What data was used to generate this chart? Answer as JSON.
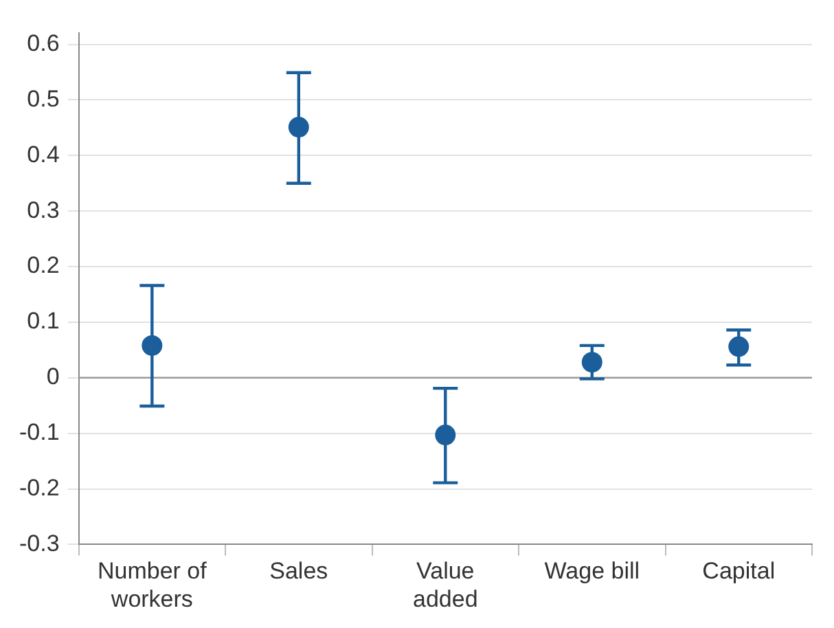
{
  "chart_data": {
    "type": "scatter",
    "categories": [
      "Number of workers",
      "Sales",
      "Value added",
      "Wage bill",
      "Capital"
    ],
    "series": [
      {
        "color": "#1b5e9b",
        "values": [
          0.058,
          0.451,
          -0.103,
          0.028,
          0.056
        ],
        "errors": [
          [
            -0.051,
            0.166
          ],
          [
            0.35,
            0.549
          ],
          [
            -0.189,
            -0.019
          ],
          [
            -0.002,
            0.058
          ],
          [
            0.023,
            0.086
          ]
        ]
      }
    ],
    "ylim": [
      -0.3,
      0.62
    ],
    "yticks": [
      -0.3,
      -0.2,
      -0.1,
      0,
      0.1,
      0.2,
      0.3,
      0.4,
      0.5,
      0.6
    ],
    "ref_lines": [
      {
        "axis": "y",
        "value": 0,
        "color": "#9a9a9a"
      }
    ],
    "grid": "y",
    "legend": false,
    "marker": "circle"
  }
}
